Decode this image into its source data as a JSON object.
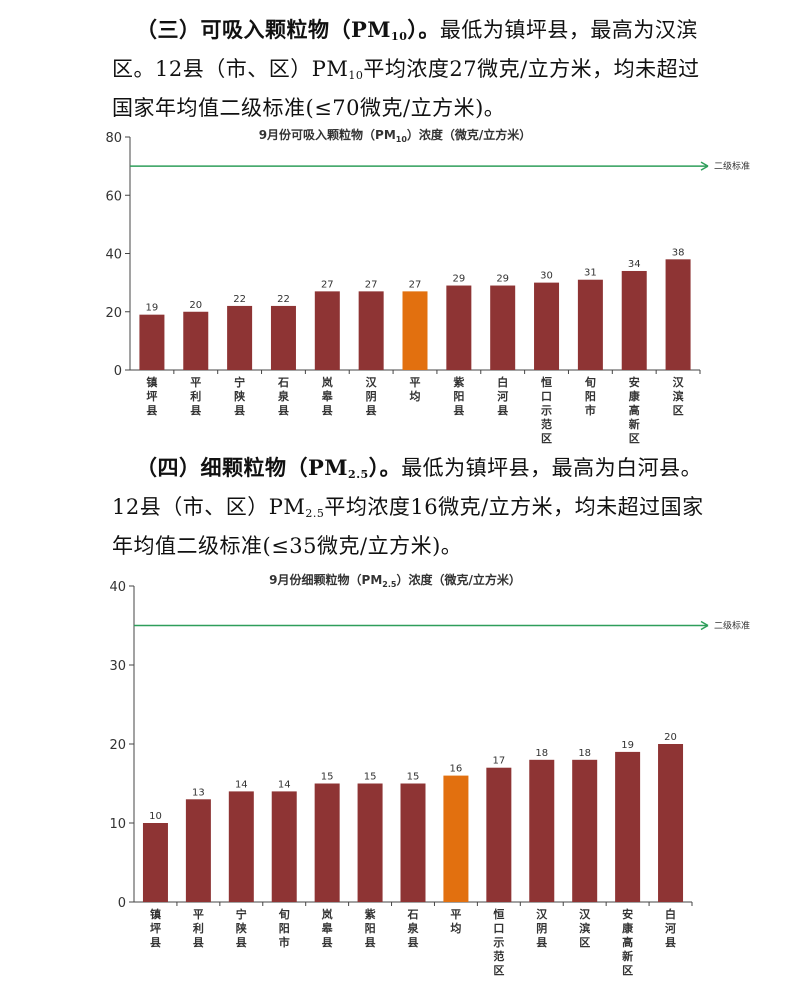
{
  "para1": {
    "heading": "（三）可吸入颗粒物（PM",
    "heading_sub": "10",
    "heading_end": "）。",
    "text1": "最低为镇坪县，最高为汉滨区。12县（市、区）PM",
    "text_sub": "10",
    "text2": "平均浓度27微克/立方米，均未超过国家年均值二级标准(≤70微克/立方米)。"
  },
  "para2": {
    "heading": "（四）细颗粒物（PM",
    "heading_sub": "2.5",
    "heading_end": "）。",
    "text1": "最低为镇坪县，最高为白河县。12县（市、区）PM",
    "text_sub": "2.5",
    "text2": "平均浓度16微克/立方米，均未超过国家年均值二级标准(≤35微克/立方米)。"
  },
  "chart_data": [
    {
      "type": "bar",
      "title": "9月份可吸入颗粒物（PM",
      "title_sub": "10",
      "title_end": "）浓度（微克/立方米）",
      "categories": [
        "镇坪县",
        "平利县",
        "宁陕县",
        "石泉县",
        "岚皋县",
        "汉阴县",
        "平均",
        "紫阳县",
        "白河县",
        "恒口示范区",
        "旬阳市",
        "安康高新区",
        "汉滨区"
      ],
      "values": [
        19,
        20,
        22,
        22,
        27,
        27,
        27,
        29,
        29,
        30,
        31,
        34,
        38
      ],
      "highlight_index": 6,
      "ylim": [
        0,
        80
      ],
      "yticks": [
        0,
        20,
        40,
        60,
        80
      ],
      "standard": {
        "label": "二级标准",
        "value": 70
      },
      "colors": {
        "bar": "#8e3434",
        "highlight": "#e2700f",
        "standard": "#2e9e5a"
      }
    },
    {
      "type": "bar",
      "title": "9月份细颗粒物（PM",
      "title_sub": "2.5",
      "title_end": "）浓度（微克/立方米）",
      "categories": [
        "镇坪县",
        "平利县",
        "宁陕县",
        "旬阳市",
        "岚皋县",
        "紫阳县",
        "石泉县",
        "平均",
        "恒口示范区",
        "汉阴县",
        "汉滨区",
        "安康高新区",
        "白河县"
      ],
      "values": [
        10,
        13,
        14,
        14,
        15,
        15,
        15,
        16,
        17,
        18,
        18,
        19,
        20
      ],
      "highlight_index": 7,
      "ylim": [
        0,
        40
      ],
      "yticks": [
        0,
        10,
        20,
        30,
        40
      ],
      "standard": {
        "label": "二级标准",
        "value": 35
      },
      "colors": {
        "bar": "#8e3434",
        "highlight": "#e2700f",
        "standard": "#2e9e5a"
      }
    }
  ]
}
